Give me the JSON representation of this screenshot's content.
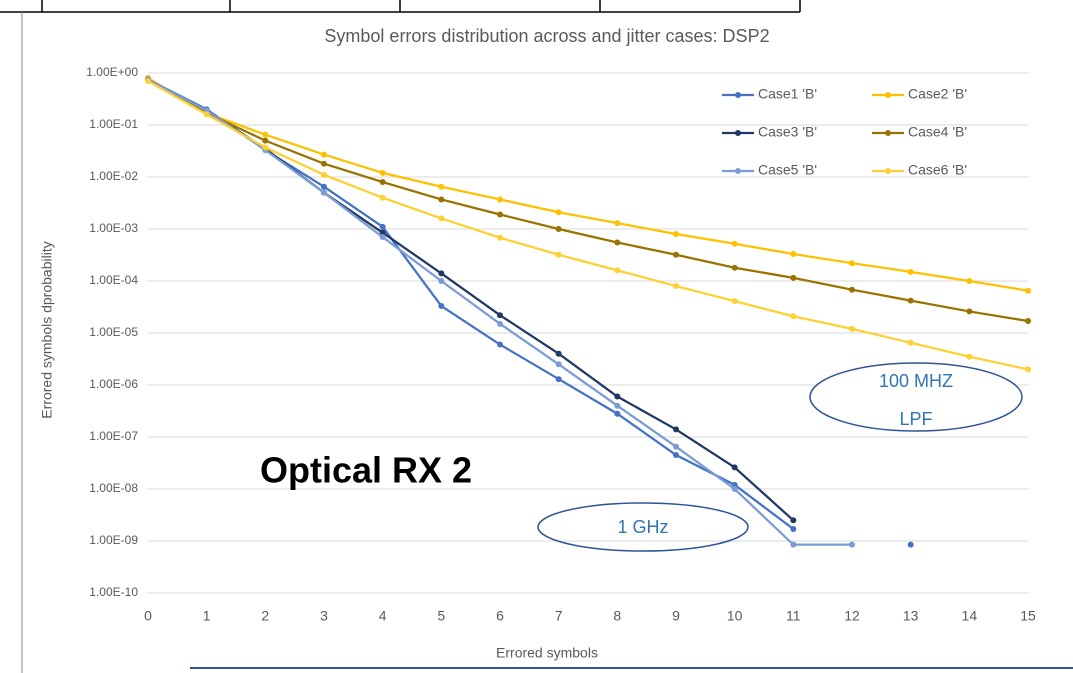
{
  "chart_data": {
    "type": "line",
    "title": "Symbol errors distribution across and jitter cases: DSP2",
    "x_label": "Errored symbols",
    "y_label": "Errored symbols dprobability",
    "x": [
      0,
      1,
      2,
      3,
      4,
      5,
      6,
      7,
      8,
      9,
      10,
      11,
      12,
      13,
      14,
      15
    ],
    "xlim": [
      0,
      15
    ],
    "xticks": [
      0,
      1,
      2,
      3,
      4,
      5,
      6,
      7,
      8,
      9,
      10,
      11,
      12,
      13,
      14,
      15
    ],
    "ylim": [
      1e-10,
      1
    ],
    "yticks": [
      {
        "value": 1e-10,
        "label": "1.00E-10"
      },
      {
        "value": 1e-09,
        "label": "1.00E-09"
      },
      {
        "value": 1e-08,
        "label": "1.00E-08"
      },
      {
        "value": 1e-07,
        "label": "1.00E-07"
      },
      {
        "value": 1e-06,
        "label": "1.00E-06"
      },
      {
        "value": 1e-05,
        "label": "1.00E-05"
      },
      {
        "value": 0.0001,
        "label": "1.00E-04"
      },
      {
        "value": 0.001,
        "label": "1.00E-03"
      },
      {
        "value": 0.01,
        "label": "1.00E-02"
      },
      {
        "value": 0.1,
        "label": "1.00E-01"
      },
      {
        "value": 1,
        "label": "1.00E+00"
      }
    ],
    "log_y": true,
    "grid": true,
    "legend": "upper right",
    "series": [
      {
        "name": "Case1 'B'",
        "color": "#4472c4",
        "values": [
          0.75,
          0.2,
          0.033,
          0.0065,
          0.0011,
          3.3e-05,
          6e-06,
          1.3e-06,
          2.8e-07,
          4.5e-08,
          1.2e-08,
          1.7e-09,
          null,
          8.5e-10,
          null,
          null
        ]
      },
      {
        "name": "Case2 'B'",
        "color": "#ffc000",
        "values": [
          0.8,
          0.17,
          0.065,
          0.027,
          0.012,
          0.0065,
          0.0037,
          0.0021,
          0.0013,
          0.0008,
          0.00052,
          0.00033,
          0.00022,
          0.00015,
          0.0001,
          6.5e-05
        ]
      },
      {
        "name": "Case3 'B'",
        "color": "#203864",
        "values": [
          0.75,
          0.19,
          0.035,
          0.005,
          0.00085,
          0.00014,
          2.2e-05,
          4e-06,
          6e-07,
          1.4e-07,
          2.6e-08,
          2.5e-09,
          null,
          null,
          null,
          null
        ]
      },
      {
        "name": "Case4 'B'",
        "color": "#997300",
        "values": [
          0.75,
          0.17,
          0.05,
          0.018,
          0.008,
          0.0037,
          0.0019,
          0.001,
          0.00055,
          0.00032,
          0.00018,
          0.000115,
          6.8e-05,
          4.2e-05,
          2.6e-05,
          1.7e-05
        ]
      },
      {
        "name": "Case5 'B'",
        "color": "#7b9bd6",
        "values": [
          0.75,
          0.19,
          0.033,
          0.005,
          0.0007,
          0.0001,
          1.5e-05,
          2.5e-06,
          4e-07,
          6.5e-08,
          1e-08,
          8.5e-10,
          8.5e-10,
          null,
          null,
          null
        ]
      },
      {
        "name": "Case6 'B'",
        "color": "#ffd033",
        "values": [
          0.7,
          0.16,
          0.037,
          0.011,
          0.004,
          0.0016,
          0.00068,
          0.00032,
          0.00016,
          8e-05,
          4.1e-05,
          2.1e-05,
          1.2e-05,
          6.5e-06,
          3.5e-06,
          2e-06
        ]
      }
    ],
    "annotations": [
      {
        "lines": [
          "Optical RX 2"
        ]
      },
      {
        "lines": [
          "1 GHz"
        ]
      },
      {
        "lines": [
          "100 MHZ",
          "LPF"
        ]
      }
    ]
  }
}
